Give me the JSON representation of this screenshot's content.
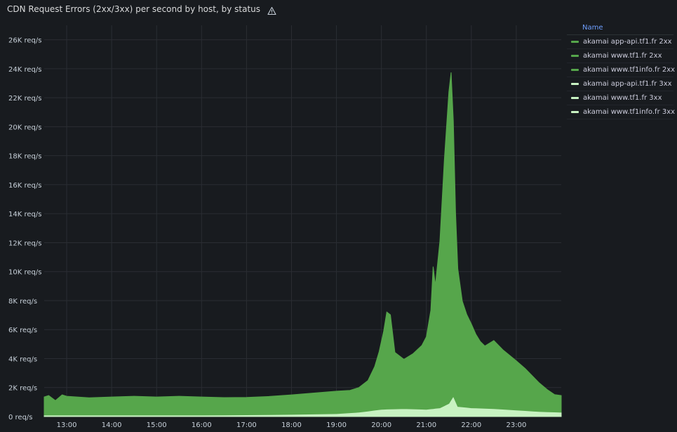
{
  "panel": {
    "title": "CDN Request Errors (2xx/3xx) per second by host, by status",
    "warning_icon": "warning-triangle-icon"
  },
  "legend": {
    "header": "Name",
    "items": [
      {
        "label": "akamai app-api.tf1.fr 2xx",
        "color": "#56a64b"
      },
      {
        "label": "akamai www.tf1.fr 2xx",
        "color": "#56a64b"
      },
      {
        "label": "akamai www.tf1info.fr 2xx",
        "color": "#56a64b"
      },
      {
        "label": "akamai app-api.tf1.fr 3xx",
        "color": "#c8f2c2"
      },
      {
        "label": "akamai www.tf1.fr 3xx",
        "color": "#c8f2c2"
      },
      {
        "label": "akamai www.tf1info.fr 3xx",
        "color": "#c8f2c2"
      }
    ]
  },
  "chart_data": {
    "type": "area",
    "stacked": true,
    "xlim": [
      12.5,
      24.0
    ],
    "ylim": [
      0,
      27000
    ],
    "x_ticks": [
      {
        "value": 13,
        "label": "13:00"
      },
      {
        "value": 14,
        "label": "14:00"
      },
      {
        "value": 15,
        "label": "15:00"
      },
      {
        "value": 16,
        "label": "16:00"
      },
      {
        "value": 17,
        "label": "17:00"
      },
      {
        "value": 18,
        "label": "18:00"
      },
      {
        "value": 19,
        "label": "19:00"
      },
      {
        "value": 20,
        "label": "20:00"
      },
      {
        "value": 21,
        "label": "21:00"
      },
      {
        "value": 22,
        "label": "22:00"
      },
      {
        "value": 23,
        "label": "23:00"
      }
    ],
    "y_ticks": [
      {
        "value": 0,
        "label": "0 req/s"
      },
      {
        "value": 2000,
        "label": "2K req/s"
      },
      {
        "value": 4000,
        "label": "4K req/s"
      },
      {
        "value": 6000,
        "label": "6K req/s"
      },
      {
        "value": 8000,
        "label": "8K req/s"
      },
      {
        "value": 10000,
        "label": "10K req/s"
      },
      {
        "value": 12000,
        "label": "12K req/s"
      },
      {
        "value": 14000,
        "label": "14K req/s"
      },
      {
        "value": 16000,
        "label": "16K req/s"
      },
      {
        "value": 18000,
        "label": "18K req/s"
      },
      {
        "value": 20000,
        "label": "20K req/s"
      },
      {
        "value": 22000,
        "label": "22K req/s"
      },
      {
        "value": 24000,
        "label": "24K req/s"
      },
      {
        "value": 26000,
        "label": "26K req/s"
      }
    ],
    "grid": true,
    "legend_position": "right",
    "series": [
      {
        "name": "akamai www.tf1.fr 3xx",
        "color": "#c8f2c2",
        "x": [
          12.5,
          13.0,
          14.0,
          15.0,
          16.0,
          17.0,
          18.0,
          19.0,
          19.5,
          20.0,
          20.5,
          21.0,
          21.3,
          21.5,
          21.6,
          21.7,
          22.0,
          22.5,
          23.0,
          23.5,
          24.0
        ],
        "y": [
          100,
          100,
          100,
          100,
          100,
          120,
          150,
          200,
          300,
          500,
          550,
          500,
          600,
          900,
          1400,
          700,
          600,
          550,
          450,
          350,
          300
        ]
      },
      {
        "name": "akamai www.tf1.fr 2xx",
        "color": "#56a64b",
        "x": [
          12.5,
          12.6,
          12.75,
          12.9,
          13.0,
          13.5,
          14.0,
          14.5,
          15.0,
          15.5,
          16.0,
          16.5,
          17.0,
          17.5,
          18.0,
          18.5,
          19.0,
          19.3,
          19.5,
          19.7,
          19.85,
          19.95,
          20.05,
          20.12,
          20.2,
          20.3,
          20.5,
          20.7,
          20.9,
          21.0,
          21.1,
          21.15,
          21.2,
          21.3,
          21.4,
          21.5,
          21.55,
          21.6,
          21.65,
          21.7,
          21.8,
          21.9,
          22.0,
          22.1,
          22.2,
          22.3,
          22.5,
          22.7,
          23.0,
          23.2,
          23.5,
          23.7,
          23.85,
          24.0
        ],
        "y": [
          1250,
          1350,
          1000,
          1400,
          1300,
          1200,
          1250,
          1300,
          1250,
          1300,
          1250,
          1200,
          1200,
          1250,
          1350,
          1450,
          1550,
          1550,
          1700,
          2100,
          3000,
          4000,
          5400,
          6700,
          6500,
          3900,
          3400,
          3800,
          4400,
          5000,
          6800,
          9800,
          8500,
          11500,
          17000,
          21500,
          22600,
          19000,
          13000,
          9500,
          7300,
          6400,
          5800,
          5100,
          4600,
          4300,
          4700,
          4100,
          3400,
          2900,
          2000,
          1500,
          1200,
          1150
        ]
      }
    ]
  }
}
